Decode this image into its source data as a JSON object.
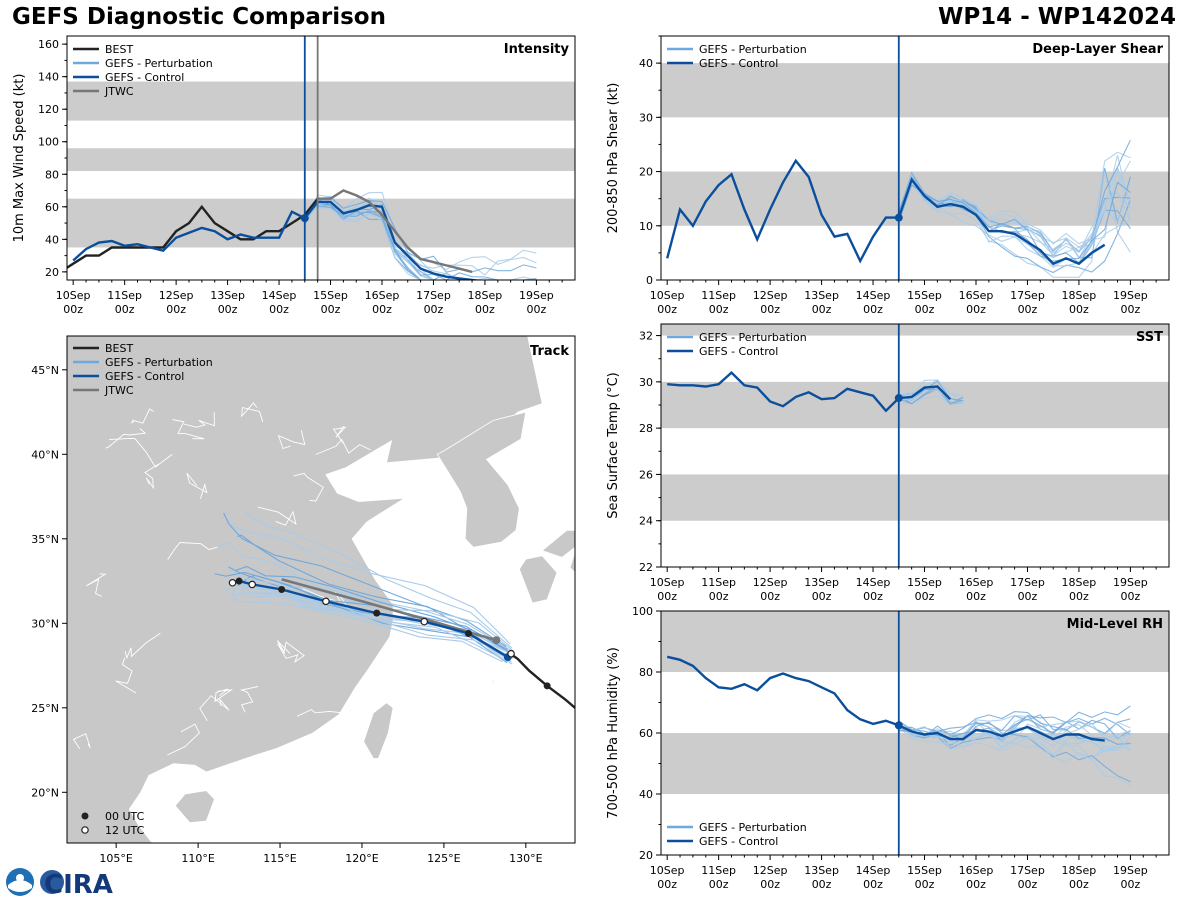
{
  "header": {
    "title_left": "GEFS Diagnostic Comparison",
    "title_right": "WP14 - WP142024"
  },
  "logo": {
    "text": "CIRA"
  },
  "chart_data": [
    {
      "id": "intensity",
      "type": "line",
      "title": "Intensity",
      "ylabel": "10m Max Wind Speed (kt)",
      "ylim": [
        15,
        165
      ],
      "yticks": [
        20,
        40,
        60,
        80,
        100,
        120,
        140,
        160
      ],
      "bands": [
        [
          35,
          65
        ],
        [
          82,
          96
        ],
        [
          113,
          137
        ]
      ],
      "xticks": [
        "10Sep 00z",
        "11Sep 00z",
        "12Sep 00z",
        "13Sep 00z",
        "14Sep 00z",
        "15Sep 00z",
        "16Sep 00z",
        "17Sep 00z",
        "18Sep 00z",
        "19Sep 00z"
      ],
      "legend": [
        "BEST",
        "GEFS - Perturbation",
        "GEFS - Control",
        "JTWC"
      ],
      "vlines": [
        {
          "x": 4.5,
          "series": "GEFS - Control"
        },
        {
          "x": 4.75,
          "series": "JTWC"
        }
      ],
      "series": [
        {
          "name": "BEST",
          "x": [
            -0.25,
            0,
            0.25,
            0.5,
            0.75,
            1,
            1.25,
            1.5,
            1.75,
            2,
            2.25,
            2.5,
            2.75,
            3,
            3.25,
            3.5,
            3.75,
            4,
            4.25,
            4.5,
            4.75
          ],
          "y": [
            20,
            25,
            30,
            30,
            35,
            35,
            35,
            35,
            35,
            45,
            50,
            60,
            50,
            45,
            40,
            40,
            45,
            45,
            50,
            55,
            65
          ]
        },
        {
          "name": "GEFS - Control",
          "x": [
            0,
            0.25,
            0.5,
            0.75,
            1,
            1.25,
            1.5,
            1.75,
            2,
            2.25,
            2.5,
            2.75,
            3,
            3.25,
            3.5,
            3.75,
            4,
            4.25,
            4.5,
            4.75,
            5,
            5.25,
            5.5,
            5.75,
            6,
            6.25,
            6.5,
            6.75,
            7,
            7.25,
            7.5,
            7.75,
            8
          ],
          "y": [
            27,
            34,
            38,
            39,
            36,
            37,
            35,
            33,
            41,
            44,
            47,
            45,
            40,
            43,
            41,
            41,
            41,
            57,
            53,
            63,
            63,
            56,
            58,
            61,
            60,
            38,
            30,
            22,
            19,
            17,
            16,
            15,
            14
          ]
        },
        {
          "name": "JTWC",
          "x": [
            4.75,
            5,
            5.25,
            5.5,
            5.75,
            6,
            6.25,
            6.5,
            6.75,
            7,
            7.25,
            7.5,
            7.75
          ],
          "y": [
            65,
            65,
            70,
            67,
            63,
            55,
            45,
            35,
            28,
            26,
            24,
            22,
            20
          ]
        }
      ],
      "perturbations": {
        "name": "GEFS - Perturbation",
        "x": [
          4.5,
          4.75,
          5,
          5.25,
          5.5,
          5.75,
          6,
          6.25,
          6.5,
          6.75,
          7,
          7.25,
          7.5,
          7.75,
          8,
          8.25,
          8.5,
          8.75,
          9
        ],
        "members": 16
      }
    },
    {
      "id": "shear",
      "type": "line",
      "title": "Deep-Layer Shear",
      "ylabel": "200-850 hPa Shear (kt)",
      "ylim": [
        0,
        45
      ],
      "yticks": [
        0,
        10,
        20,
        30,
        40
      ],
      "bands": [
        [
          10,
          20
        ],
        [
          30,
          40
        ]
      ],
      "xticks": [
        "10Sep 00z",
        "11Sep 00z",
        "12Sep 00z",
        "13Sep 00z",
        "14Sep 00z",
        "15Sep 00z",
        "16Sep 00z",
        "17Sep 00z",
        "18Sep 00z",
        "19Sep 00z"
      ],
      "legend": [
        "GEFS - Perturbation",
        "GEFS - Control"
      ],
      "vlines": [
        {
          "x": 4.5,
          "series": "GEFS - Control"
        }
      ],
      "series": [
        {
          "name": "GEFS - Control",
          "x": [
            0,
            0.25,
            0.5,
            0.75,
            1,
            1.25,
            1.5,
            1.75,
            2,
            2.25,
            2.5,
            2.75,
            3,
            3.25,
            3.5,
            3.75,
            4,
            4.25,
            4.5,
            4.75,
            5,
            5.25,
            5.5,
            5.75,
            6,
            6.25,
            6.5,
            6.75,
            7,
            7.25,
            7.5,
            7.75,
            8,
            8.25,
            8.5
          ],
          "y": [
            4,
            13,
            10,
            14.5,
            17.5,
            19.5,
            13,
            7.5,
            13,
            18,
            22,
            19,
            12,
            8,
            8.5,
            3.5,
            8,
            11.5,
            11.5,
            18.5,
            15.5,
            13.5,
            14,
            13.5,
            12,
            9,
            9,
            8.5,
            7,
            5.5,
            3,
            4,
            3,
            5,
            6.5
          ]
        }
      ],
      "perturbations": {
        "name": "GEFS - Perturbation",
        "x": [
          4.5,
          4.75,
          5,
          5.25,
          5.5,
          5.75,
          6,
          6.25,
          6.5,
          6.75,
          7,
          7.25,
          7.5,
          7.75,
          8,
          8.25,
          8.5,
          8.75,
          9
        ],
        "members": 16
      }
    },
    {
      "id": "sst",
      "type": "line",
      "title": "SST",
      "ylabel": "Sea Surface Temp (°C)",
      "ylim": [
        22,
        32.5
      ],
      "yticks": [
        22,
        24,
        26,
        28,
        30,
        32
      ],
      "bands": [
        [
          24,
          26
        ],
        [
          28,
          30
        ],
        [
          32,
          32.5
        ]
      ],
      "xticks": [
        "10Sep 00z",
        "11Sep 00z",
        "12Sep 00z",
        "13Sep 00z",
        "14Sep 00z",
        "15Sep 00z",
        "16Sep 00z",
        "17Sep 00z",
        "18Sep 00z",
        "19Sep 00z"
      ],
      "legend": [
        "GEFS - Perturbation",
        "GEFS - Control"
      ],
      "vlines": [
        {
          "x": 4.5,
          "series": "GEFS - Control"
        }
      ],
      "series": [
        {
          "name": "GEFS - Control",
          "x": [
            0,
            0.25,
            0.5,
            0.75,
            1,
            1.25,
            1.5,
            1.75,
            2,
            2.25,
            2.5,
            2.75,
            3,
            3.25,
            3.5,
            3.75,
            4,
            4.25,
            4.5,
            4.75,
            5,
            5.25,
            5.5
          ],
          "y": [
            29.9,
            29.85,
            29.85,
            29.8,
            29.9,
            30.4,
            29.85,
            29.75,
            29.15,
            28.95,
            29.35,
            29.55,
            29.25,
            29.3,
            29.7,
            29.55,
            29.4,
            28.75,
            29.3,
            29.35,
            29.75,
            29.8,
            29.25
          ]
        }
      ],
      "perturbations": {
        "name": "GEFS - Perturbation",
        "x": [
          4.5,
          4.75,
          5,
          5.25,
          5.5,
          5.75
        ],
        "members": 10
      }
    },
    {
      "id": "rh",
      "type": "line",
      "title": "Mid-Level RH",
      "ylabel": "700-500 hPa Humidity (%)",
      "ylim": [
        20,
        100
      ],
      "yticks": [
        20,
        40,
        60,
        80,
        100
      ],
      "bands": [
        [
          40,
          60
        ],
        [
          80,
          100
        ]
      ],
      "xticks": [
        "10Sep 00z",
        "11Sep 00z",
        "12Sep 00z",
        "13Sep 00z",
        "14Sep 00z",
        "15Sep 00z",
        "16Sep 00z",
        "17Sep 00z",
        "18Sep 00z",
        "19Sep 00z"
      ],
      "legend": [
        "GEFS - Perturbation",
        "GEFS - Control"
      ],
      "vlines": [
        {
          "x": 4.5,
          "series": "GEFS - Control"
        }
      ],
      "series": [
        {
          "name": "GEFS - Control",
          "x": [
            0,
            0.25,
            0.5,
            0.75,
            1,
            1.25,
            1.5,
            1.75,
            2,
            2.25,
            2.5,
            2.75,
            3,
            3.25,
            3.5,
            3.75,
            4,
            4.25,
            4.5,
            4.75,
            5,
            5.25,
            5.5,
            5.75,
            6,
            6.25,
            6.5,
            6.75,
            7,
            7.25,
            7.5,
            7.75,
            8,
            8.25,
            8.5
          ],
          "y": [
            85,
            84,
            82,
            78,
            75,
            74.5,
            76,
            74,
            78,
            79.5,
            78,
            77,
            75,
            73,
            67.5,
            64.5,
            63,
            64,
            62.5,
            60.5,
            59.5,
            60,
            58,
            58,
            61,
            60.5,
            59,
            60.5,
            62,
            60,
            58,
            59.5,
            59.5,
            58,
            57.5
          ]
        }
      ],
      "perturbations": {
        "name": "GEFS - Perturbation",
        "x": [
          4.5,
          4.75,
          5,
          5.25,
          5.5,
          5.75,
          6,
          6.25,
          6.5,
          6.75,
          7,
          7.25,
          7.5,
          7.75,
          8,
          8.25,
          8.5,
          8.75,
          9
        ],
        "members": 16
      }
    },
    {
      "id": "track",
      "type": "scatter",
      "title": "Track",
      "xlim": [
        102,
        133
      ],
      "ylim": [
        17,
        47
      ],
      "xticks": [
        "105°E",
        "110°E",
        "115°E",
        "120°E",
        "125°E",
        "130°E"
      ],
      "yticks": [
        "20°N",
        "25°N",
        "30°N",
        "35°N",
        "40°N",
        "45°N"
      ],
      "legend": [
        "BEST",
        "GEFS - Perturbation",
        "GEFS - Control",
        "JTWC"
      ],
      "marker_legend": [
        "00 UTC",
        "12 UTC"
      ],
      "best_track": {
        "lon": [
          128.9,
          129.5,
          130.2,
          131.3,
          132.4,
          133.0
        ],
        "lat": [
          28.3,
          27.9,
          27.2,
          26.3,
          25.5,
          25.0
        ]
      },
      "control_track": {
        "lon": [
          128.9,
          126.5,
          123.8,
          120.9,
          117.8,
          115.1,
          113.3,
          112.5,
          112.1
        ],
        "lat": [
          28.0,
          29.4,
          30.1,
          30.6,
          31.3,
          32.0,
          32.3,
          32.5,
          32.4
        ]
      },
      "jtwc_track": {
        "lon": [
          128.2,
          124,
          120,
          115.1
        ],
        "lat": [
          29.0,
          30.2,
          31.3,
          32.6
        ]
      },
      "markers_00utc": [
        {
          "lon": 126.5,
          "lat": 29.4
        },
        {
          "lon": 120.9,
          "lat": 30.6
        },
        {
          "lon": 115.1,
          "lat": 32.0
        },
        {
          "lon": 112.5,
          "lat": 32.5
        },
        {
          "lon": 131.3,
          "lat": 26.3
        }
      ],
      "markers_12utc": [
        {
          "lon": 123.8,
          "lat": 30.1
        },
        {
          "lon": 117.8,
          "lat": 31.3
        },
        {
          "lon": 113.3,
          "lat": 32.3
        },
        {
          "lon": 112.1,
          "lat": 32.4
        },
        {
          "lon": 129.1,
          "lat": 28.2
        }
      ]
    }
  ],
  "colors": {
    "best": "#222222",
    "perturbation_legend": "#6fa8dc",
    "perturbation": "#a9cbe8",
    "control": "#0b4f9c",
    "jtwc": "#777777",
    "band": "#cccccc",
    "land": "#c8c8c8",
    "ocean": "#ffffff"
  }
}
